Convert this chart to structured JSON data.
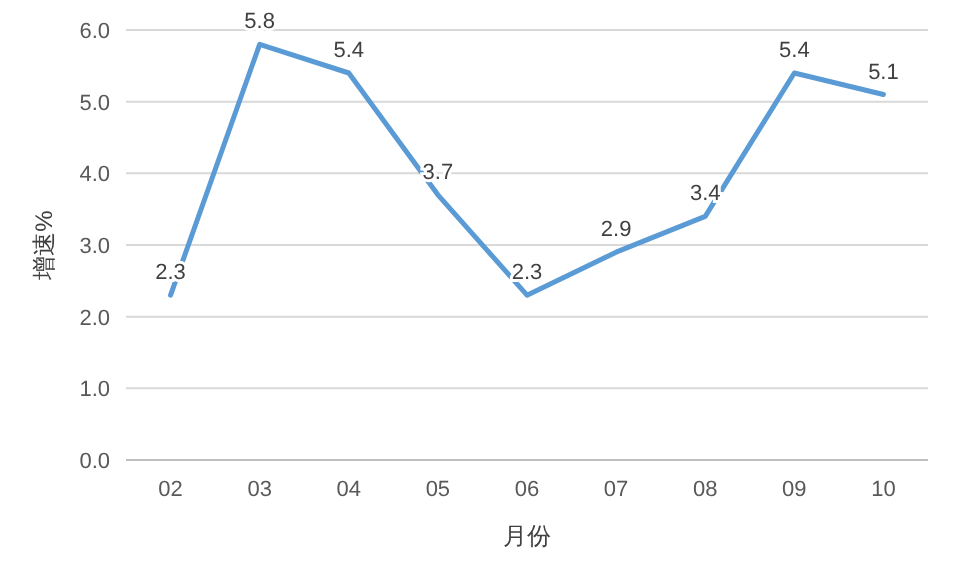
{
  "chart_data": {
    "type": "line",
    "xlabel": "月份",
    "ylabel": "增速%",
    "categories": [
      "02",
      "03",
      "04",
      "05",
      "06",
      "07",
      "08",
      "09",
      "10"
    ],
    "values": [
      2.3,
      5.8,
      5.4,
      3.7,
      2.3,
      2.9,
      3.4,
      5.4,
      5.1
    ],
    "color": "#5b9bd5",
    "ylim": [
      0,
      6
    ],
    "yticks": [
      {
        "value": 0,
        "label": "0.0"
      },
      {
        "value": 1,
        "label": "1.0"
      },
      {
        "value": 2,
        "label": "2.0"
      },
      {
        "value": 3,
        "label": "3.0"
      },
      {
        "value": 4,
        "label": "4.0"
      },
      {
        "value": 5,
        "label": "5.0"
      },
      {
        "value": 6,
        "label": "6.0"
      }
    ],
    "grid": "y",
    "data_labels": true
  }
}
